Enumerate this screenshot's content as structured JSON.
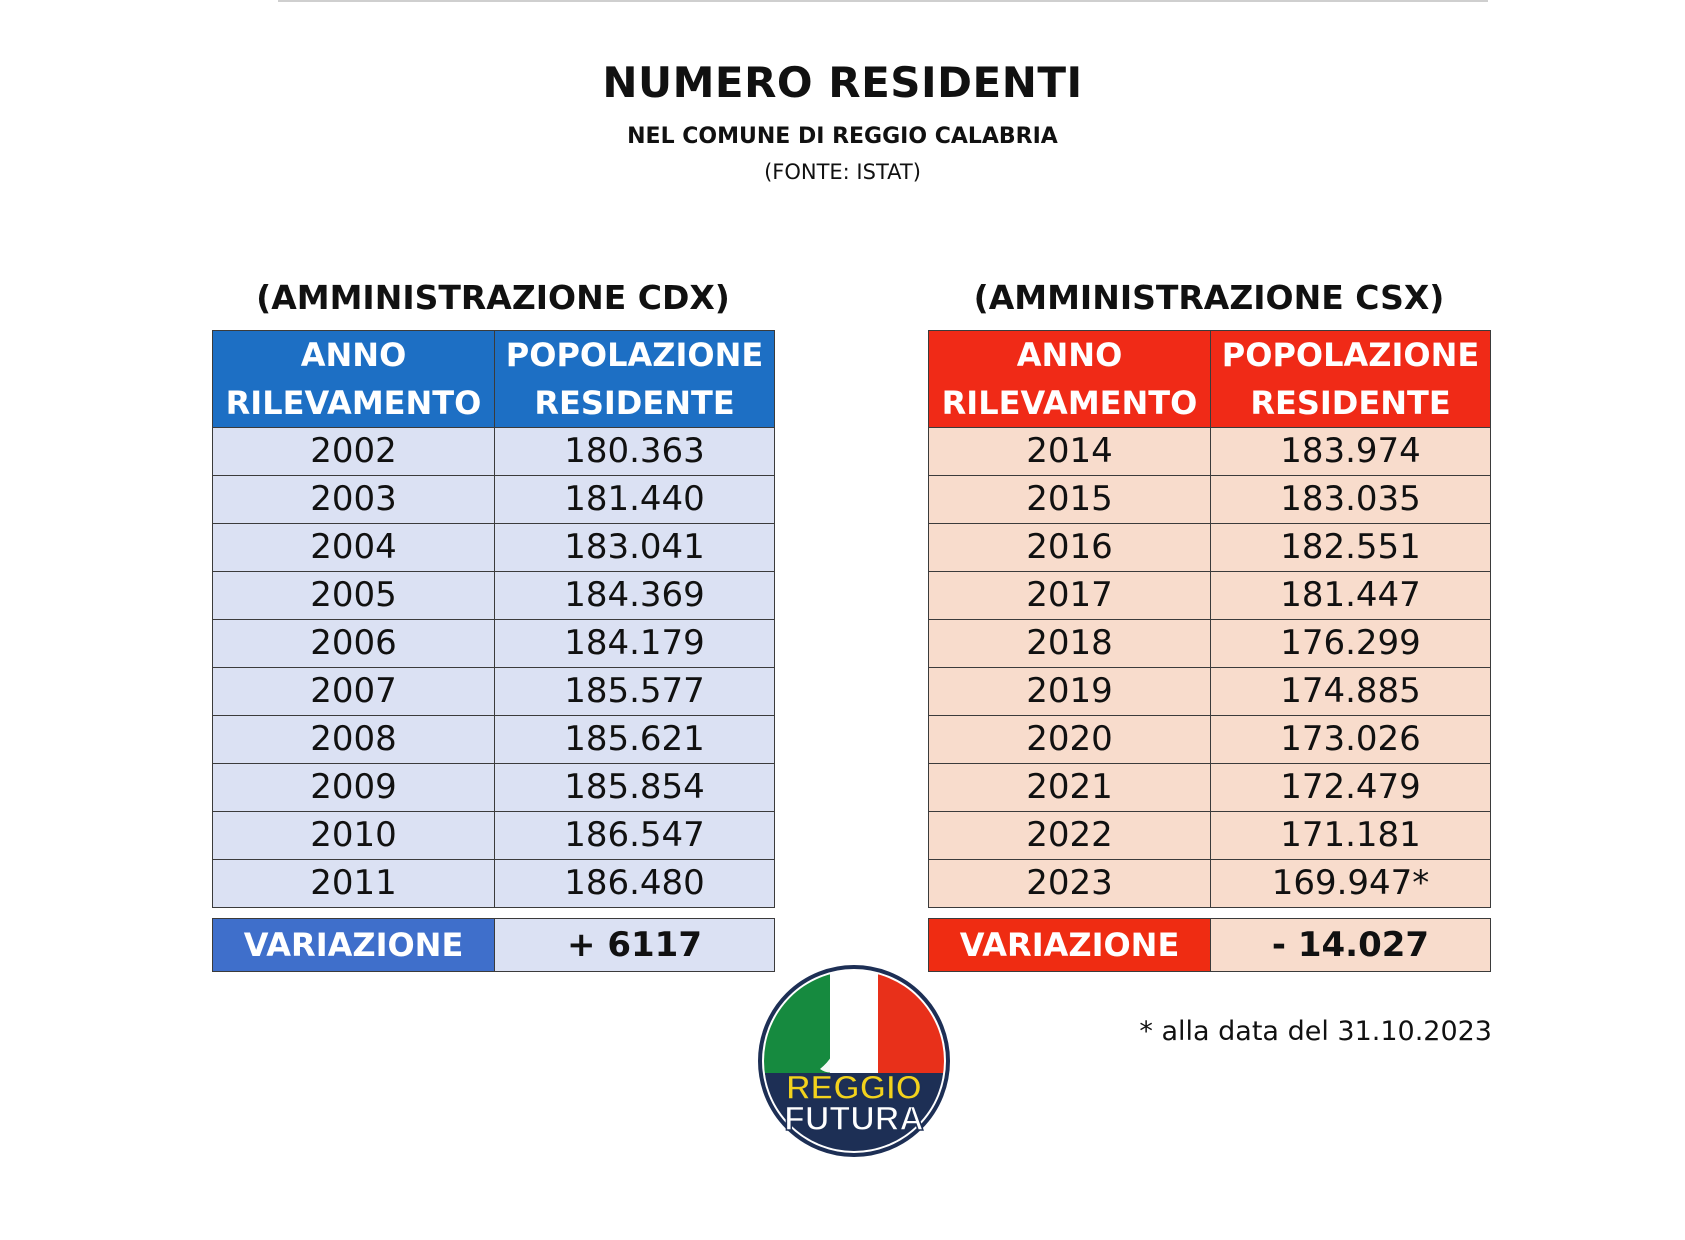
{
  "header": {
    "title": "NUMERO RESIDENTI",
    "subtitle": "NEL COMUNE DI REGGIO CALABRIA",
    "source": "(FONTE: ISTAT)"
  },
  "cdx": {
    "heading": "(AMMINISTRAZIONE CDX)",
    "col_year_1": "ANNO",
    "col_year_2": "RILEVAMENTO",
    "col_pop_1": "POPOLAZIONE",
    "col_pop_2": "RESIDENTE",
    "rows": [
      {
        "year": "2002",
        "pop": "180.363"
      },
      {
        "year": "2003",
        "pop": "181.440"
      },
      {
        "year": "2004",
        "pop": "183.041"
      },
      {
        "year": "2005",
        "pop": "184.369"
      },
      {
        "year": "2006",
        "pop": "184.179"
      },
      {
        "year": "2007",
        "pop": "185.577"
      },
      {
        "year": "2008",
        "pop": "185.621"
      },
      {
        "year": "2009",
        "pop": "185.854"
      },
      {
        "year": "2010",
        "pop": "186.547"
      },
      {
        "year": "2011",
        "pop": "186.480"
      }
    ],
    "variation_label": "VARIAZIONE",
    "variation_value": "+ 6117",
    "header_color": "#1d6fc4",
    "row_color": "#dbe1f3"
  },
  "csx": {
    "heading": "(AMMINISTRAZIONE CSX)",
    "col_year_1": "ANNO",
    "col_year_2": "RILEVAMENTO",
    "col_pop_1": "POPOLAZIONE",
    "col_pop_2": "RESIDENTE",
    "rows": [
      {
        "year": "2014",
        "pop": "183.974"
      },
      {
        "year": "2015",
        "pop": "183.035"
      },
      {
        "year": "2016",
        "pop": "182.551"
      },
      {
        "year": "2017",
        "pop": "181.447"
      },
      {
        "year": "2018",
        "pop": "176.299"
      },
      {
        "year": "2019",
        "pop": "174.885"
      },
      {
        "year": "2020",
        "pop": "173.026"
      },
      {
        "year": "2021",
        "pop": "172.479"
      },
      {
        "year": "2022",
        "pop": "171.181"
      },
      {
        "year": "2023",
        "pop": "169.947*"
      }
    ],
    "variation_label": "VARIAZIONE",
    "variation_value": "- 14.027",
    "header_color": "#f02a17",
    "row_color": "#f8dccc"
  },
  "footnote": "* alla data del 31.10.2023",
  "logo": {
    "icon": "reggio-futura-logo",
    "line1": "REGGIO",
    "line2": "FUTURA"
  }
}
